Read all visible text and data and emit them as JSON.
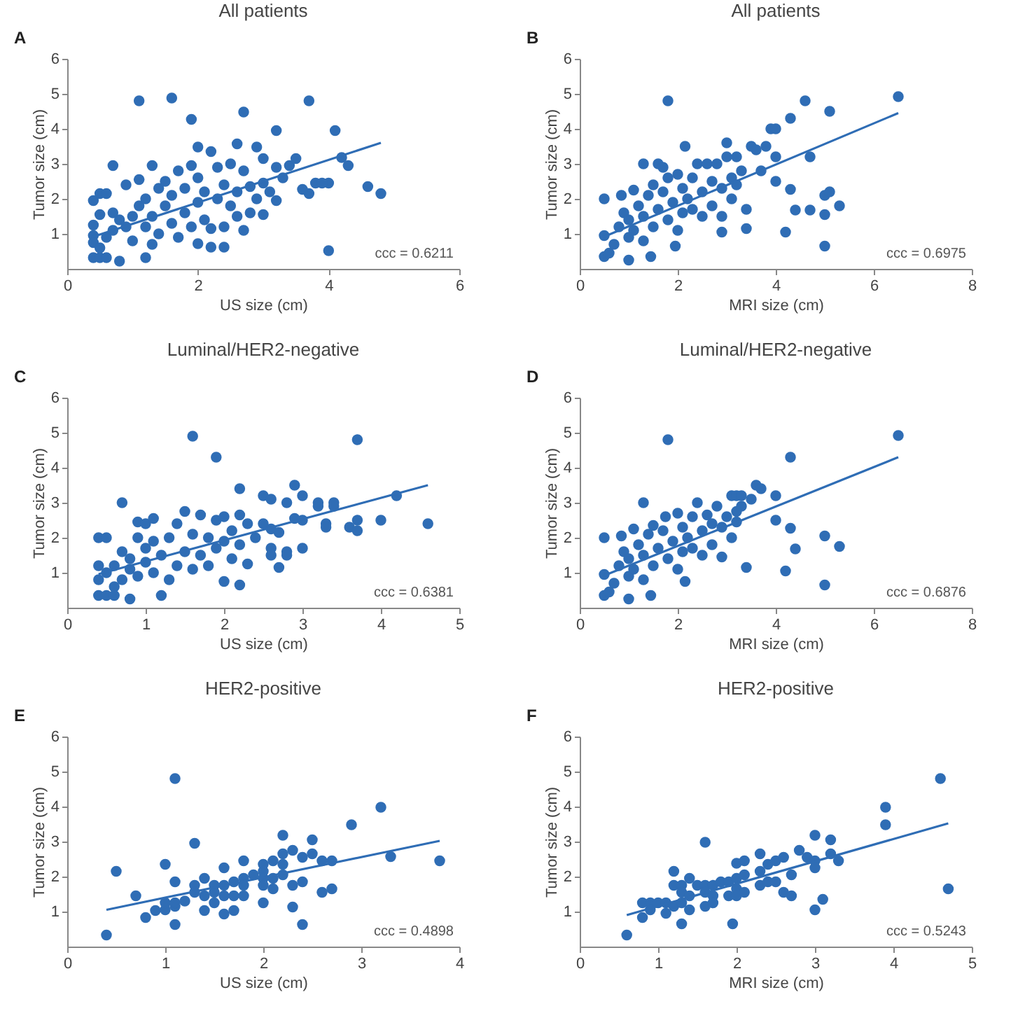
{
  "chart_data": [
    {
      "type": "scatter",
      "title": "All patients",
      "xlabel": "US size (cm)",
      "ylabel": "Tumor size (cm)",
      "annotations": [
        "A",
        "ccc = 0.6211"
      ],
      "xlim": [
        0,
        6
      ],
      "xticks": [
        0,
        2,
        4,
        6
      ],
      "ylim": [
        0,
        6
      ],
      "yticks": [
        1,
        2,
        3,
        4,
        5,
        6
      ],
      "series": [
        {
          "marker": "circle",
          "color": "#2f6db5",
          "x": [
            1.1,
            1.6,
            1.9,
            2.7,
            3.7,
            3.2,
            4.1,
            2.0,
            2.9,
            2.6,
            0.7,
            1.3,
            4.2,
            4.3,
            4.6,
            4.8,
            4.0,
            3.7,
            3.6,
            3.8,
            3.9,
            4.0,
            2.2,
            2.4,
            2.0,
            1.2,
            0.8,
            0.4,
            0.5,
            0.6,
            0.4,
            0.5,
            0.6,
            0.5,
            0.4,
            0.4,
            0.4,
            0.5,
            0.6,
            0.7,
            0.7,
            0.8,
            0.9,
            0.9,
            1.0,
            1.0,
            1.1,
            1.1,
            1.2,
            1.2,
            1.3,
            1.3,
            1.4,
            1.4,
            1.5,
            1.5,
            1.6,
            1.6,
            1.7,
            1.7,
            1.8,
            1.8,
            1.9,
            1.9,
            2.0,
            2.0,
            2.1,
            2.1,
            2.2,
            2.2,
            2.3,
            2.3,
            2.4,
            2.4,
            2.5,
            2.5,
            2.6,
            2.6,
            2.7,
            2.7,
            2.8,
            2.8,
            2.9,
            3.0,
            3.0,
            3.0,
            3.1,
            3.2,
            3.2,
            3.3,
            3.4,
            3.5
          ],
          "values": [
            4.8,
            4.88,
            4.27,
            4.48,
            4.8,
            3.95,
            3.95,
            3.48,
            3.48,
            3.57,
            2.95,
            2.95,
            3.18,
            2.95,
            2.35,
            2.15,
            2.45,
            2.15,
            2.27,
            2.45,
            2.45,
            0.52,
            0.62,
            0.62,
            0.72,
            0.32,
            0.22,
            0.32,
            0.32,
            0.32,
            1.95,
            2.15,
            2.15,
            1.55,
            1.25,
            0.95,
            0.75,
            0.6,
            0.9,
            1.1,
            1.6,
            1.4,
            2.4,
            1.2,
            0.8,
            1.5,
            2.55,
            1.8,
            1.2,
            2.0,
            1.5,
            0.7,
            2.3,
            1.0,
            1.8,
            2.5,
            1.3,
            2.1,
            2.8,
            0.9,
            1.6,
            2.3,
            2.95,
            1.2,
            1.9,
            2.6,
            1.4,
            2.2,
            3.35,
            1.15,
            2.0,
            2.9,
            1.2,
            2.4,
            1.8,
            3.0,
            2.2,
            1.5,
            2.8,
            1.1,
            2.35,
            1.6,
            2.0,
            2.45,
            3.15,
            1.55,
            2.2,
            2.9,
            1.95,
            2.6,
            2.95,
            3.15
          ]
        },
        {
          "type": "line",
          "color": "#2f6db5",
          "x": [
            0.4,
            4.8
          ],
          "values": [
            0.92,
            3.6
          ]
        }
      ]
    },
    {
      "type": "scatter",
      "title": "All patients",
      "xlabel": "MRI size (cm)",
      "ylabel": "Tumor size (cm)",
      "annotations": [
        "B",
        "ccc = 0.6975"
      ],
      "xlim": [
        0,
        8
      ],
      "xticks": [
        0,
        2,
        4,
        6,
        8
      ],
      "ylim": [
        0,
        6
      ],
      "yticks": [
        1,
        2,
        3,
        4,
        5,
        6
      ],
      "series": [
        {
          "marker": "circle",
          "color": "#2f6db5",
          "x": [
            1.8,
            4.6,
            6.5,
            5.1,
            4.3,
            3.9,
            4.0,
            3.0,
            2.15,
            3.5,
            3.8,
            3.6,
            4.7,
            4.0,
            1.3,
            1.6,
            1.7,
            4.0,
            4.3,
            5.0,
            5.1,
            5.3,
            4.4,
            4.7,
            5.0,
            4.2,
            3.4,
            2.9,
            5.0,
            1.95,
            1.45,
            1.0,
            0.5,
            0.6,
            0.5,
            0.85,
            0.5,
            0.7,
            0.8,
            0.9,
            1.0,
            1.0,
            1.1,
            1.1,
            1.2,
            1.3,
            1.3,
            1.4,
            1.5,
            1.5,
            1.6,
            1.7,
            1.8,
            1.8,
            1.9,
            2.0,
            2.0,
            2.1,
            2.1,
            2.2,
            2.3,
            2.3,
            2.4,
            2.5,
            2.5,
            2.6,
            2.7,
            2.7,
            2.8,
            2.9,
            2.9,
            3.0,
            3.1,
            3.1,
            3.2,
            3.2,
            3.3,
            3.4,
            3.7
          ],
          "values": [
            4.8,
            4.8,
            4.92,
            4.5,
            4.3,
            4.0,
            4.0,
            3.6,
            3.5,
            3.5,
            3.5,
            3.4,
            3.2,
            3.2,
            3.0,
            3.0,
            2.9,
            2.5,
            2.27,
            2.1,
            2.2,
            1.8,
            1.68,
            1.68,
            1.55,
            1.05,
            1.15,
            1.05,
            0.65,
            0.65,
            0.35,
            0.25,
            0.35,
            0.45,
            2.0,
            2.1,
            0.95,
            0.7,
            1.2,
            1.6,
            0.9,
            1.4,
            2.25,
            1.1,
            1.8,
            0.8,
            1.5,
            2.1,
            1.2,
            2.4,
            1.7,
            2.2,
            2.6,
            1.4,
            1.9,
            2.7,
            1.1,
            2.3,
            1.6,
            2.0,
            2.6,
            1.7,
            3.0,
            2.2,
            1.5,
            3.0,
            2.5,
            1.8,
            3.0,
            2.3,
            1.5,
            3.2,
            2.6,
            2.0,
            3.2,
            2.4,
            2.8,
            1.7,
            2.8
          ]
        },
        {
          "type": "line",
          "color": "#2f6db5",
          "x": [
            0.5,
            6.5
          ],
          "values": [
            0.92,
            4.45
          ]
        }
      ]
    },
    {
      "type": "scatter",
      "title": "Luminal/HER2-negative",
      "xlabel": "US size (cm)",
      "ylabel": "Tumor size (cm)",
      "annotations": [
        "C",
        "ccc = 0.6381"
      ],
      "xlim": [
        0,
        5
      ],
      "xticks": [
        0,
        1,
        2,
        3,
        4,
        5
      ],
      "ylim": [
        0,
        6
      ],
      "yticks": [
        1,
        2,
        3,
        4,
        5,
        6
      ],
      "series": [
        {
          "marker": "circle",
          "color": "#2f6db5",
          "x": [
            1.6,
            1.9,
            3.7,
            2.9,
            2.2,
            2.5,
            2.6,
            3.0,
            4.2,
            0.7,
            2.8,
            3.2,
            3.4,
            3.2,
            3.4,
            3.7,
            4.0,
            4.6,
            3.6,
            3.7,
            3.3,
            3.3,
            3.0,
            3.0,
            2.8,
            2.8,
            2.6,
            2.6,
            2.7,
            2.3,
            2.2,
            2.0,
            1.2,
            0.8,
            0.4,
            0.5,
            0.6,
            0.4,
            0.5,
            0.4,
            0.4,
            0.5,
            0.6,
            0.6,
            0.7,
            0.7,
            0.8,
            0.8,
            0.9,
            0.9,
            0.9,
            1.0,
            1.0,
            1.0,
            1.1,
            1.1,
            1.1,
            1.2,
            1.3,
            1.3,
            1.4,
            1.4,
            1.5,
            1.5,
            1.6,
            1.6,
            1.7,
            1.7,
            1.8,
            1.8,
            1.9,
            1.9,
            2.0,
            2.0,
            2.1,
            2.1,
            2.2,
            2.2,
            2.3,
            2.4,
            2.5,
            2.6,
            2.7,
            2.9
          ],
          "values": [
            4.9,
            4.3,
            4.8,
            3.5,
            3.4,
            3.2,
            3.1,
            3.2,
            3.2,
            3.0,
            3.0,
            3.0,
            3.0,
            2.9,
            2.9,
            2.5,
            2.5,
            2.4,
            2.3,
            2.2,
            2.4,
            2.3,
            2.5,
            1.7,
            1.6,
            1.5,
            1.7,
            1.5,
            1.15,
            1.25,
            0.65,
            0.75,
            0.35,
            0.25,
            0.35,
            0.35,
            0.35,
            2.0,
            2.0,
            1.2,
            0.8,
            1.0,
            0.6,
            1.2,
            0.8,
            1.6,
            1.1,
            1.4,
            2.45,
            2.0,
            0.9,
            1.3,
            1.7,
            2.4,
            2.55,
            1.0,
            1.9,
            1.5,
            0.8,
            2.0,
            1.2,
            2.4,
            2.75,
            1.6,
            1.1,
            2.1,
            2.65,
            1.5,
            2.0,
            1.2,
            2.5,
            1.7,
            2.6,
            1.9,
            1.4,
            2.2,
            2.65,
            1.8,
            2.4,
            2.0,
            2.4,
            2.25,
            2.15,
            2.55
          ]
        },
        {
          "type": "line",
          "color": "#2f6db5",
          "x": [
            0.4,
            4.6
          ],
          "values": [
            0.96,
            3.5
          ]
        }
      ]
    },
    {
      "type": "scatter",
      "title": "Luminal/HER2-negative",
      "xlabel": "MRI size (cm)",
      "ylabel": "Tumor size (cm)",
      "annotations": [
        "D",
        "ccc = 0.6876"
      ],
      "xlim": [
        0,
        8
      ],
      "xticks": [
        0,
        2,
        4,
        6,
        8
      ],
      "ylim": [
        0,
        6
      ],
      "yticks": [
        1,
        2,
        3,
        4,
        5,
        6
      ],
      "series": [
        {
          "marker": "circle",
          "color": "#2f6db5",
          "x": [
            1.8,
            6.5,
            4.3,
            3.6,
            3.7,
            4.0,
            3.1,
            3.2,
            3.3,
            3.5,
            1.3,
            2.4,
            3.3,
            2.8,
            4.0,
            4.3,
            5.0,
            5.3,
            4.4,
            4.2,
            3.4,
            2.9,
            5.0,
            2.15,
            1.45,
            1.0,
            0.5,
            0.6,
            0.5,
            0.85,
            0.5,
            0.7,
            0.8,
            0.9,
            1.0,
            1.0,
            1.1,
            1.1,
            1.2,
            1.3,
            1.3,
            1.4,
            1.5,
            1.5,
            1.6,
            1.7,
            1.75,
            1.8,
            1.9,
            2.0,
            2.0,
            2.1,
            2.1,
            2.2,
            2.3,
            2.3,
            2.5,
            2.5,
            2.6,
            2.7,
            2.7,
            2.9,
            3.0,
            3.1,
            3.2,
            3.2
          ],
          "values": [
            4.8,
            4.92,
            4.3,
            3.5,
            3.4,
            3.2,
            3.2,
            3.2,
            3.2,
            3.1,
            3.0,
            3.0,
            2.9,
            2.9,
            2.5,
            2.27,
            2.05,
            1.75,
            1.68,
            1.05,
            1.15,
            1.45,
            0.65,
            0.75,
            0.35,
            0.25,
            0.35,
            0.45,
            2.0,
            2.05,
            0.95,
            0.7,
            1.2,
            1.6,
            0.9,
            1.4,
            2.25,
            1.1,
            1.8,
            0.8,
            1.5,
            2.1,
            1.2,
            2.35,
            1.7,
            2.2,
            2.6,
            1.4,
            1.9,
            2.7,
            1.1,
            2.3,
            1.6,
            2.0,
            2.6,
            1.7,
            2.2,
            1.5,
            2.65,
            2.4,
            1.8,
            2.3,
            2.6,
            2.0,
            2.45,
            2.75
          ]
        },
        {
          "type": "line",
          "color": "#2f6db5",
          "x": [
            0.5,
            6.5
          ],
          "values": [
            0.92,
            4.3
          ]
        }
      ]
    },
    {
      "type": "scatter",
      "title": "HER2-positive",
      "xlabel": "US size (cm)",
      "ylabel": "Tumor size (cm)",
      "annotations": [
        "E",
        "ccc = 0.4898"
      ],
      "xlim": [
        0,
        4
      ],
      "xticks": [
        0,
        1,
        2,
        3,
        4
      ],
      "ylim": [
        0,
        6
      ],
      "yticks": [
        1,
        2,
        3,
        4,
        5,
        6
      ],
      "series": [
        {
          "marker": "circle",
          "color": "#2f6db5",
          "x": [
            0.4,
            0.5,
            0.7,
            0.8,
            0.9,
            1.0,
            1.0,
            1.0,
            1.1,
            1.1,
            1.1,
            1.1,
            1.1,
            1.2,
            1.3,
            1.3,
            1.3,
            1.4,
            1.4,
            1.4,
            1.5,
            1.5,
            1.5,
            1.6,
            1.6,
            1.6,
            1.6,
            1.7,
            1.7,
            1.7,
            1.8,
            1.8,
            1.8,
            1.8,
            1.9,
            2.0,
            2.0,
            2.0,
            2.0,
            2.0,
            2.1,
            2.1,
            2.1,
            2.2,
            2.2,
            2.2,
            2.2,
            2.3,
            2.3,
            2.3,
            2.4,
            2.4,
            2.4,
            2.5,
            2.5,
            2.6,
            2.6,
            2.7,
            2.7,
            2.9,
            3.2,
            3.3,
            3.8
          ],
          "values": [
            0.33,
            2.15,
            1.45,
            0.83,
            1.03,
            1.05,
            1.25,
            2.35,
            4.8,
            1.85,
            1.15,
            1.25,
            0.63,
            1.3,
            2.95,
            1.75,
            1.55,
            1.95,
            1.45,
            1.03,
            1.75,
            1.55,
            1.25,
            2.25,
            1.75,
            1.45,
            0.93,
            1.85,
            1.45,
            1.03,
            2.45,
            1.95,
            1.75,
            1.45,
            2.05,
            2.35,
            2.15,
            1.95,
            1.75,
            1.25,
            2.45,
            1.95,
            1.65,
            3.18,
            2.65,
            2.35,
            2.05,
            2.75,
            1.75,
            1.13,
            2.55,
            1.85,
            0.63,
            3.05,
            2.65,
            2.45,
            1.55,
            2.45,
            1.65,
            3.48,
            3.98,
            2.57,
            2.45
          ]
        },
        {
          "type": "line",
          "color": "#2f6db5",
          "x": [
            0.4,
            3.8
          ],
          "values": [
            1.05,
            3.02
          ]
        }
      ]
    },
    {
      "type": "scatter",
      "title": "HER2-positive",
      "xlabel": "MRI size (cm)",
      "ylabel": "Tumor size (cm)",
      "annotations": [
        "F",
        "ccc = 0.5243"
      ],
      "xlim": [
        0,
        5
      ],
      "xticks": [
        0,
        1,
        2,
        3,
        4,
        5
      ],
      "ylim": [
        0,
        6
      ],
      "yticks": [
        1,
        2,
        3,
        4,
        5,
        6
      ],
      "series": [
        {
          "marker": "circle",
          "color": "#2f6db5",
          "x": [
            0.6,
            0.8,
            0.8,
            0.9,
            0.9,
            1.0,
            1.1,
            1.1,
            1.2,
            1.2,
            1.2,
            1.3,
            1.3,
            1.3,
            1.3,
            1.4,
            1.4,
            1.4,
            1.5,
            1.6,
            1.6,
            1.6,
            1.6,
            1.7,
            1.7,
            1.7,
            1.8,
            1.9,
            1.9,
            2.0,
            2.0,
            2.0,
            2.0,
            1.95,
            2.1,
            2.1,
            2.1,
            2.3,
            2.3,
            2.3,
            2.4,
            2.4,
            2.5,
            2.5,
            2.6,
            2.6,
            2.7,
            2.7,
            2.8,
            2.9,
            3.0,
            3.0,
            3.0,
            3.0,
            3.1,
            3.2,
            3.2,
            3.3,
            3.9,
            3.9,
            4.6,
            4.7
          ],
          "values": [
            0.33,
            0.83,
            1.25,
            1.25,
            1.05,
            1.25,
            1.25,
            0.95,
            2.15,
            1.75,
            1.15,
            1.75,
            1.55,
            1.25,
            0.65,
            1.95,
            1.45,
            1.05,
            1.75,
            2.98,
            1.75,
            1.55,
            1.15,
            1.75,
            1.45,
            1.25,
            1.85,
            1.85,
            1.45,
            2.38,
            1.95,
            1.65,
            1.45,
            0.65,
            2.45,
            2.05,
            1.55,
            2.65,
            2.15,
            1.75,
            2.35,
            1.85,
            2.45,
            1.85,
            2.55,
            1.55,
            2.05,
            1.45,
            2.75,
            2.55,
            3.18,
            2.45,
            2.25,
            1.05,
            1.35,
            3.05,
            2.65,
            2.45,
            3.98,
            3.48,
            4.8,
            1.65
          ]
        },
        {
          "type": "line",
          "color": "#2f6db5",
          "x": [
            0.6,
            4.7
          ],
          "values": [
            0.9,
            3.52
          ]
        }
      ]
    }
  ]
}
